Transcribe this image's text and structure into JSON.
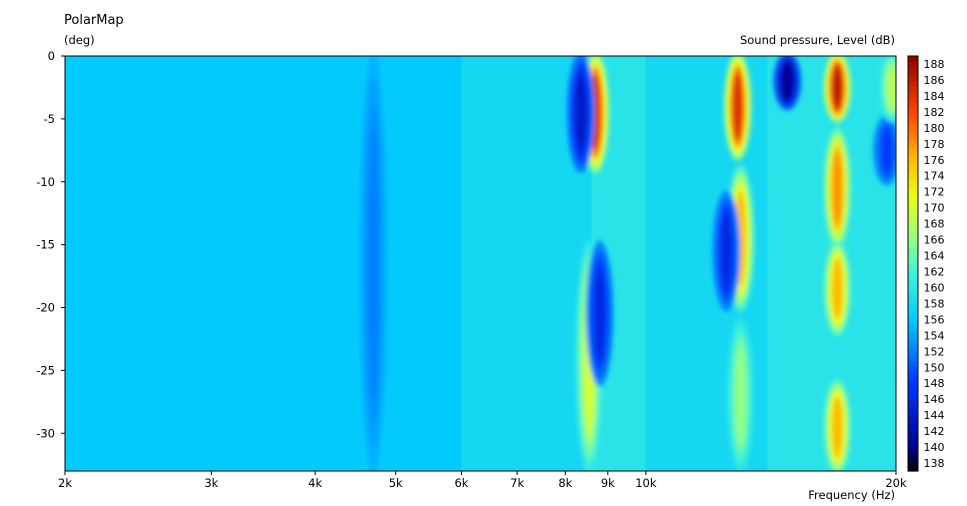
{
  "title": "PolarMap",
  "y_unit": "(deg)",
  "z_label": "Sound pressure, Level  (dB)",
  "x_label": "Frequency  (Hz)",
  "chart_data": {
    "type": "heatmap",
    "title": "PolarMap",
    "xlabel": "Frequency  (Hz)",
    "ylabel": "(deg)",
    "zlabel": "Sound pressure, Level  (dB)",
    "x_scale": "log",
    "xlim": [
      2000,
      20000
    ],
    "ylim": [
      -33,
      0
    ],
    "zlim": [
      137,
      189
    ],
    "x_ticks": [
      {
        "value": 2000,
        "label": "2k"
      },
      {
        "value": 3000,
        "label": "3k"
      },
      {
        "value": 4000,
        "label": "4k"
      },
      {
        "value": 5000,
        "label": "5k"
      },
      {
        "value": 6000,
        "label": "6k"
      },
      {
        "value": 7000,
        "label": "7k"
      },
      {
        "value": 8000,
        "label": "8k"
      },
      {
        "value": 9000,
        "label": "9k"
      },
      {
        "value": 10000,
        "label": "10k"
      },
      {
        "value": 20000,
        "label": "20k"
      }
    ],
    "y_ticks": [
      0,
      -5,
      -10,
      -15,
      -20,
      -25,
      -30
    ],
    "colorbar_ticks": [
      188,
      186,
      184,
      182,
      180,
      178,
      176,
      174,
      172,
      170,
      168,
      166,
      164,
      162,
      160,
      158,
      156,
      154,
      152,
      150,
      148,
      146,
      144,
      142,
      140,
      138
    ],
    "base_level": 156,
    "freq_profile": [
      {
        "x": 2000,
        "z": 156
      },
      {
        "x": 4400,
        "z": 156
      },
      {
        "x": 6000,
        "z": 158
      },
      {
        "x": 7500,
        "z": 158
      },
      {
        "x": 8600,
        "z": 160
      },
      {
        "x": 10000,
        "z": 158
      },
      {
        "x": 14000,
        "z": 160
      },
      {
        "x": 20000,
        "z": 160
      }
    ],
    "features": [
      {
        "name": "ridge",
        "x": 8700,
        "y_range": [
          0,
          -9
        ],
        "peak": 184
      },
      {
        "name": "null",
        "x": 8350,
        "y_range": [
          0,
          -9
        ],
        "peak": 144
      },
      {
        "name": "ridge",
        "x": 8550,
        "y_range": [
          -15,
          -33
        ],
        "peak": 170
      },
      {
        "name": "null",
        "x": 8800,
        "y_range": [
          -15,
          -26
        ],
        "peak": 146
      },
      {
        "name": "ridge",
        "x": 12900,
        "y_range": [
          0,
          -8
        ],
        "peak": 184
      },
      {
        "name": "ridge",
        "x": 13000,
        "y_range": [
          -9,
          -20
        ],
        "peak": 176
      },
      {
        "name": "null",
        "x": 12500,
        "y_range": [
          -11,
          -20
        ],
        "peak": 146
      },
      {
        "name": "ridge",
        "x": 13000,
        "y_range": [
          -21,
          -33
        ],
        "peak": 166
      },
      {
        "name": "null",
        "x": 14800,
        "y_range": [
          0,
          -4
        ],
        "peak": 140
      },
      {
        "name": "ridge",
        "x": 17000,
        "y_range": [
          0,
          -5
        ],
        "peak": 186
      },
      {
        "name": "ridge",
        "x": 17000,
        "y_range": [
          -6,
          -15
        ],
        "peak": 178
      },
      {
        "name": "ridge",
        "x": 17000,
        "y_range": [
          -15,
          -22
        ],
        "peak": 176
      },
      {
        "name": "ridge",
        "x": 17000,
        "y_range": [
          -26,
          -33
        ],
        "peak": 176
      },
      {
        "name": "null",
        "x": 19500,
        "y_range": [
          -5,
          -10
        ],
        "peak": 148
      },
      {
        "name": "ridge",
        "x": 19800,
        "y_range": [
          0,
          -5
        ],
        "peak": 168
      },
      {
        "name": "null",
        "x": 4700,
        "y_range": [
          0,
          -33
        ],
        "peak": 152
      }
    ]
  }
}
